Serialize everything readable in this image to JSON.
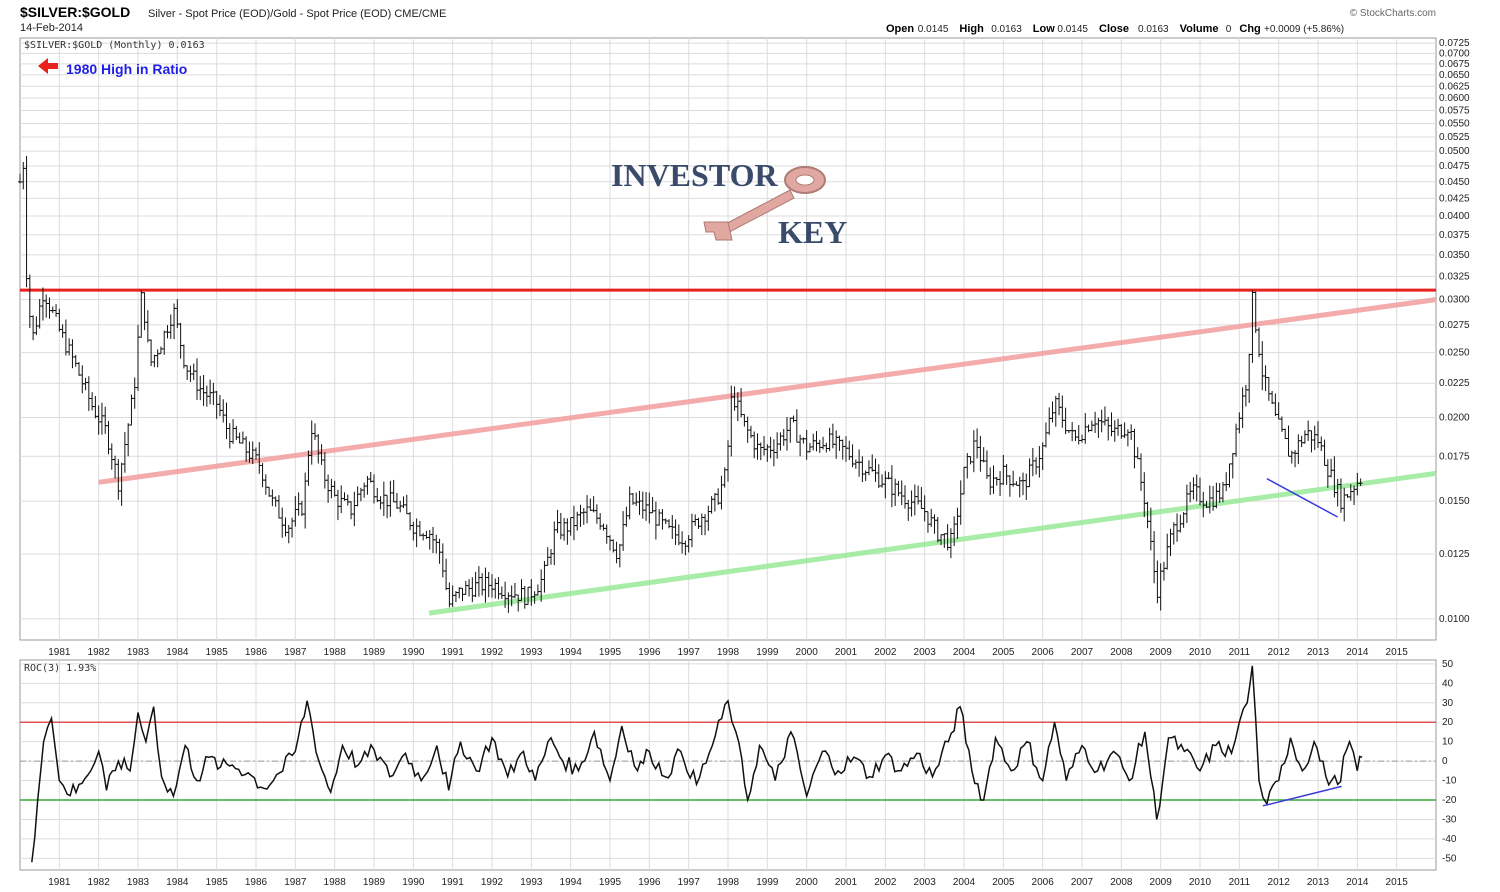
{
  "header": {
    "symbol": "$SILVER:$GOLD",
    "description": "Silver - Spot Price (EOD)/Gold - Spot Price (EOD) CME/CME",
    "date": "14-Feb-2014",
    "credit": "© StockCharts.com",
    "ohlc": [
      {
        "label": "Open",
        "value": "0.0145"
      },
      {
        "label": "High",
        "value": "0.0163"
      },
      {
        "label": "Low",
        "value": "0.0145"
      },
      {
        "label": "Close",
        "value": "0.0163"
      },
      {
        "label": "Volume",
        "value": "0"
      },
      {
        "label": "Chg",
        "value": "+0.0009 (+5.86%)"
      }
    ]
  },
  "logo": {
    "line1": "INVESTOR",
    "line2": "KEY"
  },
  "colors": {
    "resistance": "#e8231e",
    "upper_channel": "#f2a3a3",
    "lower_channel": "#9eea9e",
    "divergence": "#3a3adf",
    "roc_upper": "#e05050",
    "roc_lower": "#3aa53a",
    "annotation": "#1e1ee6",
    "arrow": "#e8231e",
    "grid": "#dcdcdc"
  },
  "chart_data": [
    {
      "type": "ohlc",
      "legend": "$SILVER:$GOLD (Monthly) 0.0163",
      "annotation": "1980 High in Ratio",
      "x_range": [
        1980,
        2016
      ],
      "x_ticks": [
        "1981",
        "1982",
        "1983",
        "1984",
        "1985",
        "1986",
        "1987",
        "1988",
        "1989",
        "1990",
        "1991",
        "1992",
        "1993",
        "1994",
        "1995",
        "1996",
        "1997",
        "1998",
        "1999",
        "2000",
        "2001",
        "2002",
        "2003",
        "2004",
        "2005",
        "2006",
        "2007",
        "2008",
        "2009",
        "2010",
        "2011",
        "2012",
        "2013",
        "2014",
        "2015"
      ],
      "y_scale": "log",
      "y_range": [
        0.0093,
        0.0738
      ],
      "y_ticks": [
        "0.0725",
        "0.0700",
        "0.0675",
        "0.0650",
        "0.0625",
        "0.0600",
        "0.0575",
        "0.0550",
        "0.0525",
        "0.0500",
        "0.0475",
        "0.0450",
        "0.0425",
        "0.0400",
        "0.0375",
        "0.0350",
        "0.0325",
        "0.0300",
        "0.0275",
        "0.0250",
        "0.0225",
        "0.0200",
        "0.0175",
        "0.0150",
        "0.0125",
        "0.0100"
      ],
      "grid": true,
      "close_series": [
        [
          1980.0,
          0.045
        ],
        [
          1980.05,
          0.062
        ],
        [
          1980.12,
          0.036
        ],
        [
          1980.3,
          0.026
        ],
        [
          1980.6,
          0.031
        ],
        [
          1981.0,
          0.027
        ],
        [
          1981.4,
          0.024
        ],
        [
          1981.8,
          0.021
        ],
        [
          1982.2,
          0.019
        ],
        [
          1982.5,
          0.016
        ],
        [
          1982.9,
          0.022
        ],
        [
          1983.1,
          0.031
        ],
        [
          1983.3,
          0.024
        ],
        [
          1983.6,
          0.026
        ],
        [
          1983.9,
          0.029
        ],
        [
          1984.2,
          0.024
        ],
        [
          1984.6,
          0.022
        ],
        [
          1985.0,
          0.021
        ],
        [
          1985.3,
          0.019
        ],
        [
          1985.7,
          0.018
        ],
        [
          1986.1,
          0.017
        ],
        [
          1986.4,
          0.015
        ],
        [
          1986.8,
          0.0137
        ],
        [
          1987.2,
          0.0148
        ],
        [
          1987.4,
          0.0195
        ],
        [
          1987.7,
          0.0165
        ],
        [
          1988.0,
          0.0152
        ],
        [
          1988.4,
          0.0145
        ],
        [
          1988.8,
          0.0162
        ],
        [
          1989.2,
          0.0152
        ],
        [
          1989.6,
          0.0148
        ],
        [
          1990.0,
          0.0138
        ],
        [
          1990.4,
          0.0135
        ],
        [
          1990.7,
          0.0125
        ],
        [
          1990.9,
          0.0105
        ],
        [
          1991.2,
          0.011
        ],
        [
          1991.6,
          0.0112
        ],
        [
          1992.0,
          0.0113
        ],
        [
          1992.4,
          0.011
        ],
        [
          1992.9,
          0.0108
        ],
        [
          1993.3,
          0.0115
        ],
        [
          1993.6,
          0.0135
        ],
        [
          1994.0,
          0.0138
        ],
        [
          1994.4,
          0.0145
        ],
        [
          1994.8,
          0.014
        ],
        [
          1995.2,
          0.0125
        ],
        [
          1995.5,
          0.015
        ],
        [
          1996.0,
          0.0145
        ],
        [
          1996.5,
          0.0135
        ],
        [
          1996.9,
          0.0132
        ],
        [
          1997.3,
          0.0142
        ],
        [
          1997.7,
          0.015
        ],
        [
          1997.95,
          0.0165
        ],
        [
          1998.1,
          0.0218
        ],
        [
          1998.4,
          0.0195
        ],
        [
          1998.8,
          0.0178
        ],
        [
          1999.2,
          0.0182
        ],
        [
          1999.6,
          0.0195
        ],
        [
          2000.0,
          0.018
        ],
        [
          2000.5,
          0.0185
        ],
        [
          2001.0,
          0.0178
        ],
        [
          2001.5,
          0.0168
        ],
        [
          2002.0,
          0.016
        ],
        [
          2002.5,
          0.0152
        ],
        [
          2003.0,
          0.0145
        ],
        [
          2003.3,
          0.0135
        ],
        [
          2003.7,
          0.013
        ],
        [
          2004.0,
          0.0165
        ],
        [
          2004.3,
          0.0185
        ],
        [
          2004.6,
          0.016
        ],
        [
          2005.0,
          0.0165
        ],
        [
          2005.5,
          0.0158
        ],
        [
          2006.0,
          0.018
        ],
        [
          2006.3,
          0.021
        ],
        [
          2006.8,
          0.0185
        ],
        [
          2007.3,
          0.02
        ],
        [
          2007.8,
          0.019
        ],
        [
          2008.2,
          0.0195
        ],
        [
          2008.6,
          0.015
        ],
        [
          2008.9,
          0.011
        ],
        [
          2009.3,
          0.0135
        ],
        [
          2009.8,
          0.0155
        ],
        [
          2010.2,
          0.015
        ],
        [
          2010.6,
          0.0155
        ],
        [
          2010.9,
          0.019
        ],
        [
          2011.2,
          0.023
        ],
        [
          2011.33,
          0.03
        ],
        [
          2011.6,
          0.023
        ],
        [
          2011.9,
          0.02
        ],
        [
          2012.3,
          0.0175
        ],
        [
          2012.7,
          0.019
        ],
        [
          2013.0,
          0.0185
        ],
        [
          2013.3,
          0.0165
        ],
        [
          2013.6,
          0.015
        ],
        [
          2013.9,
          0.0158
        ],
        [
          2014.12,
          0.0163
        ]
      ],
      "lines": [
        {
          "name": "resistance",
          "points": [
            [
              1980.0,
              0.031
            ],
            [
              2016.0,
              0.031
            ]
          ]
        },
        {
          "name": "upper-channel",
          "points": [
            [
              1982.0,
              0.016
            ],
            [
              2016.0,
              0.03
            ]
          ]
        },
        {
          "name": "lower-channel",
          "points": [
            [
              1990.4,
              0.0102
            ],
            [
              2016.0,
              0.0165
            ]
          ]
        },
        {
          "name": "price-divergence",
          "points": [
            [
              2011.7,
              0.0162
            ],
            [
              2013.5,
              0.0142
            ]
          ]
        }
      ]
    },
    {
      "type": "line",
      "legend": "ROC(3) 1.93%",
      "x_range": [
        1980,
        2016
      ],
      "y_range": [
        -56,
        52
      ],
      "y_ticks": [
        "50",
        "40",
        "30",
        "20",
        "10",
        "0",
        "-10",
        "-20",
        "-30",
        "-40",
        "-50"
      ],
      "reference_lines": [
        20,
        -20,
        0
      ],
      "x_ticks": [
        "1981",
        "1982",
        "1983",
        "1984",
        "1985",
        "1986",
        "1987",
        "1988",
        "1989",
        "1990",
        "1991",
        "1992",
        "1993",
        "1994",
        "1995",
        "1996",
        "1997",
        "1998",
        "1999",
        "2000",
        "2001",
        "2002",
        "2003",
        "2004",
        "2005",
        "2006",
        "2007",
        "2008",
        "2009",
        "2010",
        "2011",
        "2012",
        "2013",
        "2014",
        "2015"
      ],
      "values": [
        [
          1980.3,
          -52
        ],
        [
          1980.45,
          -20
        ],
        [
          1980.6,
          10
        ],
        [
          1980.8,
          22
        ],
        [
          1981.0,
          -10
        ],
        [
          1981.2,
          -17
        ],
        [
          1981.5,
          -12
        ],
        [
          1981.8,
          -5
        ],
        [
          1982.0,
          5
        ],
        [
          1982.2,
          -15
        ],
        [
          1982.5,
          0
        ],
        [
          1982.8,
          -5
        ],
        [
          1983.0,
          25
        ],
        [
          1983.2,
          10
        ],
        [
          1983.4,
          28
        ],
        [
          1983.6,
          -8
        ],
        [
          1983.9,
          -18
        ],
        [
          1984.2,
          8
        ],
        [
          1984.5,
          -10
        ],
        [
          1984.8,
          2
        ],
        [
          1985.1,
          -3
        ],
        [
          1985.4,
          -2
        ],
        [
          1985.8,
          -6
        ],
        [
          1986.2,
          -14
        ],
        [
          1986.6,
          -6
        ],
        [
          1987.0,
          5
        ],
        [
          1987.3,
          31
        ],
        [
          1987.6,
          0
        ],
        [
          1987.9,
          -16
        ],
        [
          1988.2,
          8
        ],
        [
          1988.6,
          -2
        ],
        [
          1989.0,
          6
        ],
        [
          1989.4,
          -8
        ],
        [
          1989.8,
          4
        ],
        [
          1990.2,
          -10
        ],
        [
          1990.6,
          8
        ],
        [
          1990.9,
          -15
        ],
        [
          1991.2,
          10
        ],
        [
          1991.6,
          -5
        ],
        [
          1992.0,
          12
        ],
        [
          1992.4,
          -8
        ],
        [
          1992.8,
          5
        ],
        [
          1993.1,
          -10
        ],
        [
          1993.5,
          12
        ],
        [
          1993.8,
          0
        ],
        [
          1994.2,
          -5
        ],
        [
          1994.6,
          15
        ],
        [
          1995.0,
          -10
        ],
        [
          1995.3,
          18
        ],
        [
          1995.7,
          -5
        ],
        [
          1996.0,
          5
        ],
        [
          1996.4,
          -8
        ],
        [
          1996.8,
          5
        ],
        [
          1997.2,
          -12
        ],
        [
          1997.6,
          8
        ],
        [
          1998.0,
          31
        ],
        [
          1998.2,
          15
        ],
        [
          1998.5,
          -20
        ],
        [
          1998.8,
          8
        ],
        [
          1999.2,
          -10
        ],
        [
          1999.6,
          15
        ],
        [
          2000.0,
          -18
        ],
        [
          2000.4,
          5
        ],
        [
          2000.8,
          -5
        ],
        [
          2001.2,
          2
        ],
        [
          2001.6,
          -8
        ],
        [
          2002.0,
          3
        ],
        [
          2002.4,
          -5
        ],
        [
          2002.8,
          4
        ],
        [
          2003.2,
          -8
        ],
        [
          2003.6,
          10
        ],
        [
          2003.9,
          28
        ],
        [
          2004.2,
          -5
        ],
        [
          2004.5,
          -20
        ],
        [
          2004.8,
          12
        ],
        [
          2005.2,
          -5
        ],
        [
          2005.6,
          10
        ],
        [
          2006.0,
          -10
        ],
        [
          2006.3,
          20
        ],
        [
          2006.6,
          -10
        ],
        [
          2007.0,
          8
        ],
        [
          2007.4,
          -5
        ],
        [
          2007.8,
          5
        ],
        [
          2008.2,
          -10
        ],
        [
          2008.6,
          15
        ],
        [
          2008.9,
          -30
        ],
        [
          2009.2,
          12
        ],
        [
          2009.6,
          5
        ],
        [
          2010.0,
          -5
        ],
        [
          2010.4,
          8
        ],
        [
          2010.8,
          4
        ],
        [
          2011.0,
          20
        ],
        [
          2011.2,
          30
        ],
        [
          2011.33,
          49
        ],
        [
          2011.5,
          -10
        ],
        [
          2011.7,
          -22
        ],
        [
          2012.0,
          -10
        ],
        [
          2012.3,
          12
        ],
        [
          2012.6,
          -5
        ],
        [
          2012.9,
          10
        ],
        [
          2013.2,
          -8
        ],
        [
          2013.5,
          -12
        ],
        [
          2013.8,
          10
        ],
        [
          2014.0,
          -5
        ],
        [
          2014.12,
          2
        ]
      ],
      "lines": [
        {
          "name": "roc-divergence",
          "points": [
            [
              2011.6,
              -23
            ],
            [
              2013.6,
              -13
            ]
          ]
        }
      ]
    }
  ]
}
